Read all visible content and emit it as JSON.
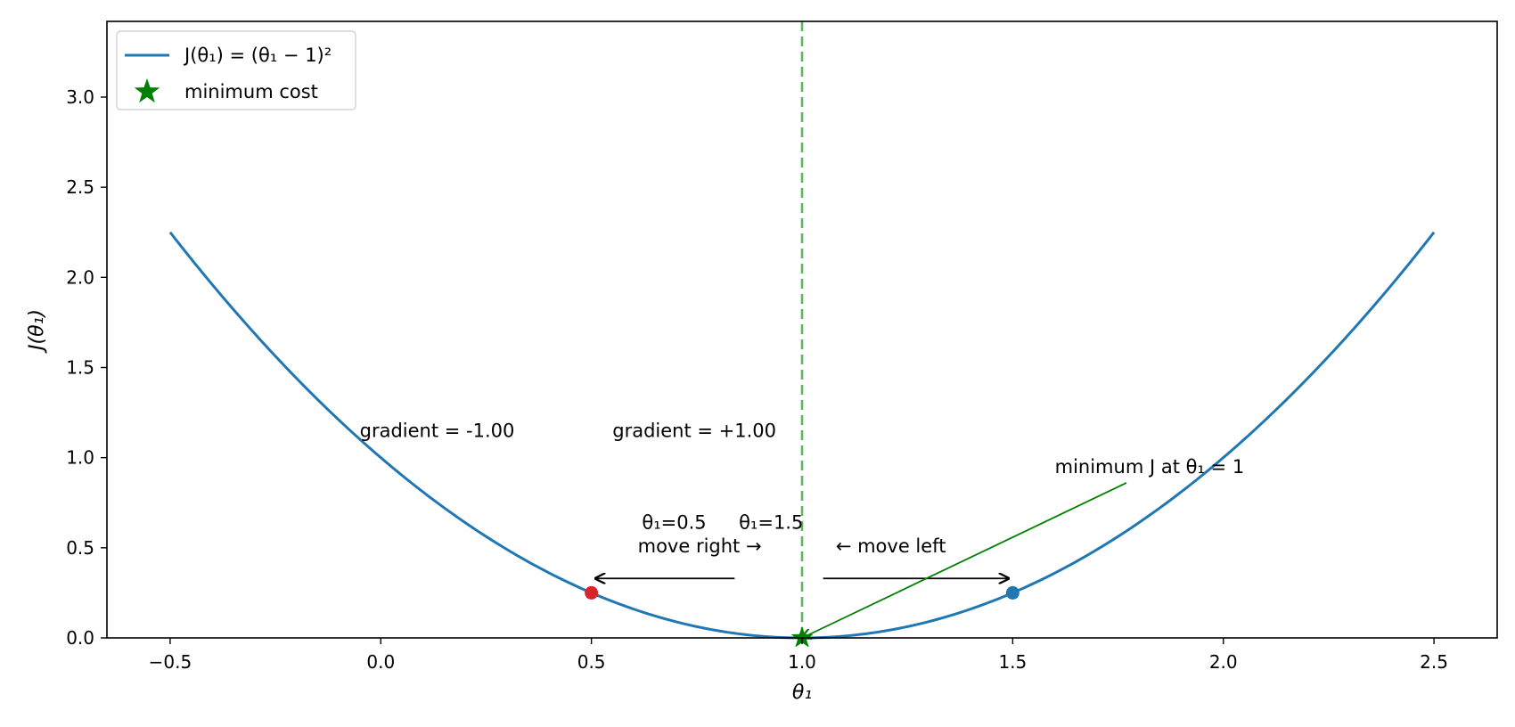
{
  "chart_data": {
    "type": "line",
    "xlabel": "θ₁",
    "ylabel": "J(θ₁)",
    "xlim": [
      -0.65,
      2.65
    ],
    "ylim": [
      0.0,
      3.42
    ],
    "x_ticks": [
      -0.5,
      0.0,
      0.5,
      1.0,
      1.5,
      2.0,
      2.5
    ],
    "y_ticks": [
      0.0,
      0.5,
      1.0,
      1.5,
      2.0,
      2.5,
      3.0
    ],
    "x_tick_labels": [
      "−0.5",
      "0.0",
      "0.5",
      "1.0",
      "1.5",
      "2.0",
      "2.5"
    ],
    "y_tick_labels": [
      "0.0",
      "0.5",
      "1.0",
      "1.5",
      "2.0",
      "2.5",
      "3.0"
    ],
    "grid": false,
    "legend_position": "top-left",
    "series": [
      {
        "name": "J(θ₁) = (θ₁ − 1)²",
        "function": "(x - 1)^2",
        "x_range": [
          -0.5,
          2.5
        ],
        "color": "#1f77b4"
      }
    ],
    "points": [
      {
        "x": 0.5,
        "y": 0.25,
        "color": "#d62728"
      },
      {
        "x": 1.5,
        "y": 0.25,
        "color": "#1f77b4"
      }
    ],
    "minimum": {
      "label": "minimum cost",
      "x": 1.0,
      "y": 0.0,
      "color": "#008000"
    },
    "vline": {
      "x": 1.0,
      "color": "#5cb85c",
      "style": "dashed"
    },
    "annotations": [
      {
        "text": "gradient = -1.00",
        "x": -0.05,
        "y": 1.15
      },
      {
        "text": "gradient = +1.00",
        "x": 0.55,
        "y": 1.15
      },
      {
        "text": "θ₁=0.5",
        "x": 0.62,
        "y": 0.64
      },
      {
        "text": "θ₁=1.5",
        "x": 0.85,
        "y": 0.64
      },
      {
        "text": "move right →",
        "x": 0.61,
        "y": 0.51
      },
      {
        "text": "← move left",
        "x": 1.08,
        "y": 0.51
      },
      {
        "text": "minimum J at θ₁ = 1",
        "x": 1.6,
        "y": 0.95,
        "color": "#008000"
      }
    ],
    "arrows": [
      {
        "from": [
          0.84,
          0.33
        ],
        "to": [
          0.51,
          0.33
        ],
        "color": "#000000"
      },
      {
        "from": [
          1.05,
          0.33
        ],
        "to": [
          1.49,
          0.33
        ],
        "color": "#000000"
      },
      {
        "from": [
          1.77,
          0.86
        ],
        "to": [
          1.0,
          0.0
        ],
        "color": "#008000"
      }
    ]
  }
}
